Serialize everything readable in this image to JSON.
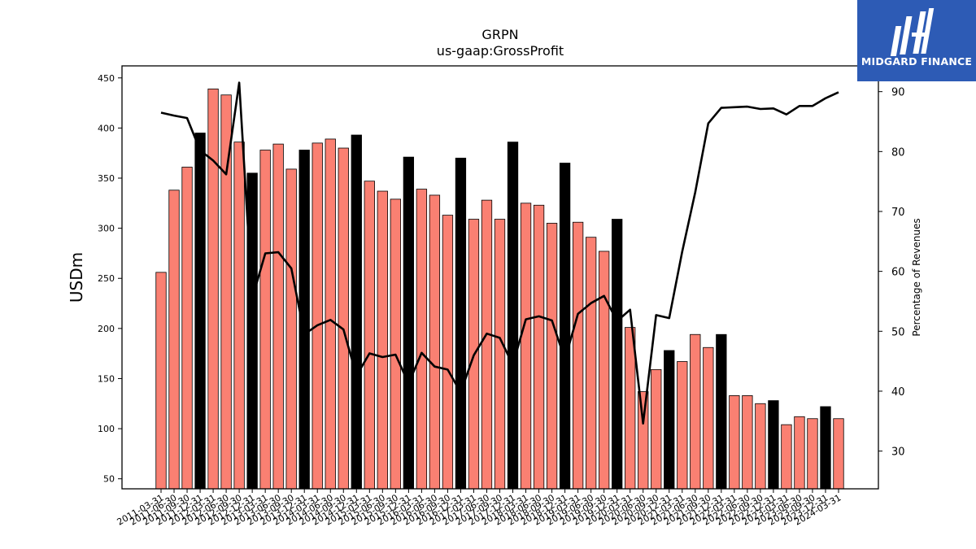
{
  "brand": {
    "name": "MIDGARD FINANCE",
    "bg_color": "#2d5bb5",
    "icon": "midgard-logo-icon"
  },
  "chart_data": {
    "type": "bar",
    "title": "GRPN",
    "subtitle": "us-gaap:GrossProfit",
    "ylabel": "USDm",
    "y2label": "Percentage of Revenues",
    "ylim": [
      40,
      462
    ],
    "y2lim": [
      23.7,
      94.3
    ],
    "yticks": [
      50,
      100,
      150,
      200,
      250,
      300,
      350,
      400,
      450
    ],
    "y2ticks": [
      30,
      40,
      50,
      60,
      70,
      80,
      90
    ],
    "bar_color": "#fa8072",
    "q4_bar_color": "#000000",
    "line_color": "#000000",
    "categories": [
      "2011-03-31",
      "2011-06-30",
      "2011-09-30",
      "2011-12-31",
      "2012-03-31",
      "2012-06-30",
      "2012-09-30",
      "2012-12-31",
      "2013-03-31",
      "2013-06-30",
      "2013-09-30",
      "2013-12-31",
      "2014-03-31",
      "2014-06-30",
      "2014-09-30",
      "2014-12-31",
      "2015-03-31",
      "2015-06-30",
      "2015-09-30",
      "2015-12-31",
      "2016-03-31",
      "2016-06-30",
      "2016-09-30",
      "2016-12-31",
      "2017-03-31",
      "2017-06-30",
      "2017-09-30",
      "2017-12-31",
      "2018-03-31",
      "2018-06-30",
      "2018-09-30",
      "2018-12-31",
      "2019-03-31",
      "2019-06-30",
      "2019-09-30",
      "2019-12-31",
      "2020-03-31",
      "2020-06-30",
      "2020-09-30",
      "2020-12-31",
      "2021-03-31",
      "2021-06-30",
      "2021-09-30",
      "2021-12-31",
      "2022-03-31",
      "2022-06-30",
      "2022-09-30",
      "2022-12-31",
      "2023-03-31",
      "2023-06-30",
      "2023-09-30",
      "2023-12-31",
      "2024-03-31"
    ],
    "series": [
      {
        "values": [
          256,
          338,
          361,
          395,
          439,
          433,
          386,
          355,
          378,
          384,
          359,
          378,
          385,
          389,
          380,
          393,
          347,
          337,
          329,
          371,
          339,
          333,
          313,
          370,
          309,
          328,
          309,
          386,
          325,
          323,
          305,
          365,
          306,
          291,
          277,
          309,
          201,
          137,
          159,
          178,
          167,
          194,
          181,
          194,
          133,
          133,
          125,
          128,
          104,
          112,
          110,
          122,
          110
        ]
      },
      {
        "axis": "right",
        "values": [
          86.5,
          86.0,
          85.6,
          80.2,
          78.5,
          76.2,
          91.5,
          55.5,
          63.0,
          63.2,
          60.5,
          49.5,
          51.0,
          51.9,
          50.3,
          42.6,
          46.3,
          45.7,
          46.1,
          41.3,
          46.4,
          44.1,
          43.6,
          39.8,
          46.0,
          49.6,
          48.9,
          44.4,
          52.0,
          52.5,
          51.8,
          45.3,
          52.9,
          54.7,
          55.9,
          51.7,
          53.6,
          34.6,
          52.7,
          52.2,
          63.3,
          73.2,
          84.7,
          87.3,
          87.4,
          87.5,
          87.1,
          87.2,
          86.2,
          87.6,
          87.6,
          88.9,
          89.9
        ]
      }
    ]
  }
}
